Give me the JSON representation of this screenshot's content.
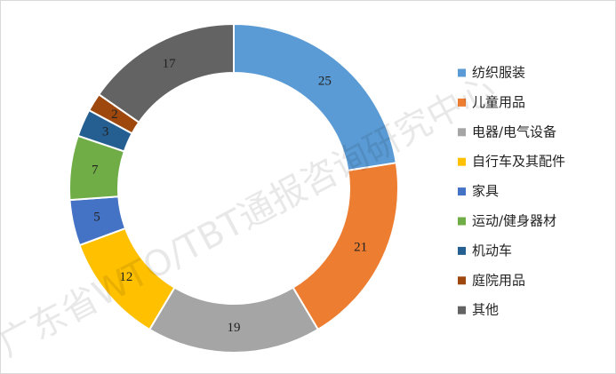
{
  "chart_data": {
    "type": "donut",
    "categories": [
      "纺织服装",
      "儿童用品",
      "电器/电气设备",
      "自行车及其配件",
      "家具",
      "运动/健身器材",
      "机动车",
      "庭院用品",
      "其他"
    ],
    "values": [
      25,
      21,
      19,
      12,
      5,
      7,
      3,
      2,
      17
    ],
    "colors": [
      "#5b9bd5",
      "#ed7d31",
      "#a5a5a5",
      "#ffc000",
      "#4472c4",
      "#70ad47",
      "#255e91",
      "#9e480e",
      "#636363"
    ],
    "legend": "right",
    "watermark": "广东省WTO/TBT通报咨询研究中心"
  }
}
